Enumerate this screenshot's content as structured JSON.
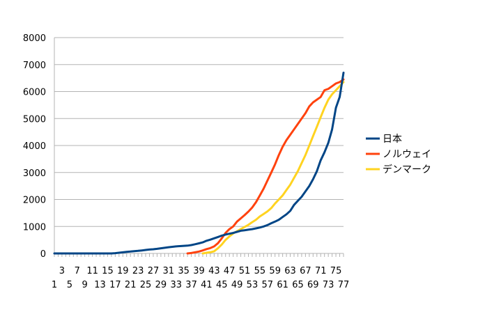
{
  "chart_data": {
    "type": "line",
    "title": "",
    "xlabel": "",
    "ylabel": "",
    "ylim": [
      0,
      8000
    ],
    "yticks": [
      0,
      1000,
      2000,
      3000,
      4000,
      5000,
      6000,
      7000,
      8000
    ],
    "xlim": [
      1,
      77
    ],
    "xticks_upper": [
      "3",
      "7",
      "11",
      "15",
      "19",
      "23",
      "27",
      "31",
      "35",
      "39",
      "43",
      "47",
      "51",
      "55",
      "59",
      "63",
      "67",
      "71",
      "75"
    ],
    "xticks_lower": [
      "1",
      "5",
      "9",
      "13",
      "17",
      "21",
      "25",
      "29",
      "33",
      "37",
      "41",
      "45",
      "49",
      "53",
      "57",
      "61",
      "65",
      "69",
      "73",
      "77"
    ],
    "grid": "horizontal",
    "legend_position": "right",
    "series": [
      {
        "name": "日本",
        "color": "#004586",
        "x": [
          1,
          2,
          4,
          5,
          6,
          7,
          10,
          11,
          12,
          13,
          14,
          15,
          16,
          17,
          18,
          19,
          20,
          21,
          22,
          23,
          24,
          25,
          26,
          27,
          28,
          29,
          30,
          31,
          32,
          33,
          34,
          35,
          36,
          37,
          38,
          39,
          40,
          41,
          42,
          43,
          44,
          45,
          46,
          47,
          48,
          49,
          50,
          51,
          52,
          53,
          54,
          55,
          56,
          57,
          58,
          59,
          60,
          61,
          62,
          63,
          64,
          65,
          66,
          67,
          68,
          69,
          70,
          71,
          72,
          73,
          74,
          75,
          76,
          77
        ],
        "values": [
          0,
          0,
          0,
          0,
          0,
          0,
          0,
          0,
          0,
          0,
          0,
          0,
          0,
          10,
          25,
          40,
          60,
          70,
          85,
          95,
          110,
          130,
          145,
          155,
          170,
          190,
          210,
          230,
          245,
          260,
          270,
          280,
          290,
          310,
          340,
          375,
          410,
          470,
          510,
          560,
          610,
          660,
          700,
          730,
          760,
          800,
          840,
          860,
          880,
          900,
          930,
          960,
          1000,
          1050,
          1120,
          1180,
          1250,
          1350,
          1450,
          1580,
          1800,
          1950,
          2100,
          2300,
          2500,
          2750,
          3050,
          3450,
          3750,
          4100,
          4600,
          5400,
          5800,
          6700
        ]
      },
      {
        "name": "ノルウェイ",
        "color": "#ff420e",
        "x": [
          36,
          37,
          38,
          39,
          40,
          41,
          42,
          43,
          44,
          45,
          46,
          47,
          48,
          49,
          50,
          51,
          52,
          53,
          54,
          55,
          56,
          57,
          58,
          59,
          60,
          61,
          62,
          63,
          64,
          65,
          66,
          67,
          68,
          69,
          70,
          71,
          72,
          73,
          74,
          75,
          76,
          77
        ],
        "values": [
          0,
          15,
          40,
          70,
          110,
          160,
          200,
          260,
          380,
          560,
          760,
          900,
          1000,
          1180,
          1300,
          1420,
          1550,
          1700,
          1900,
          2150,
          2400,
          2700,
          3000,
          3300,
          3650,
          3950,
          4200,
          4400,
          4600,
          4800,
          5000,
          5200,
          5450,
          5600,
          5700,
          5800,
          6050,
          6100,
          6200,
          6300,
          6350,
          6450
        ]
      },
      {
        "name": "デンマーク",
        "color": "#ffd320",
        "x": [
          40,
          41,
          42,
          43,
          44,
          45,
          46,
          47,
          48,
          49,
          50,
          51,
          52,
          53,
          54,
          55,
          56,
          57,
          58,
          59,
          60,
          61,
          62,
          63,
          64,
          65,
          66,
          67,
          68,
          69,
          70,
          71,
          72,
          73,
          74,
          75,
          76,
          77
        ],
        "values": [
          0,
          25,
          45,
          80,
          190,
          330,
          500,
          630,
          740,
          820,
          900,
          980,
          1060,
          1160,
          1250,
          1370,
          1460,
          1560,
          1680,
          1850,
          2000,
          2150,
          2350,
          2550,
          2800,
          3050,
          3350,
          3650,
          4000,
          4350,
          4700,
          5050,
          5400,
          5700,
          5900,
          6050,
          6200,
          6350
        ]
      }
    ]
  }
}
